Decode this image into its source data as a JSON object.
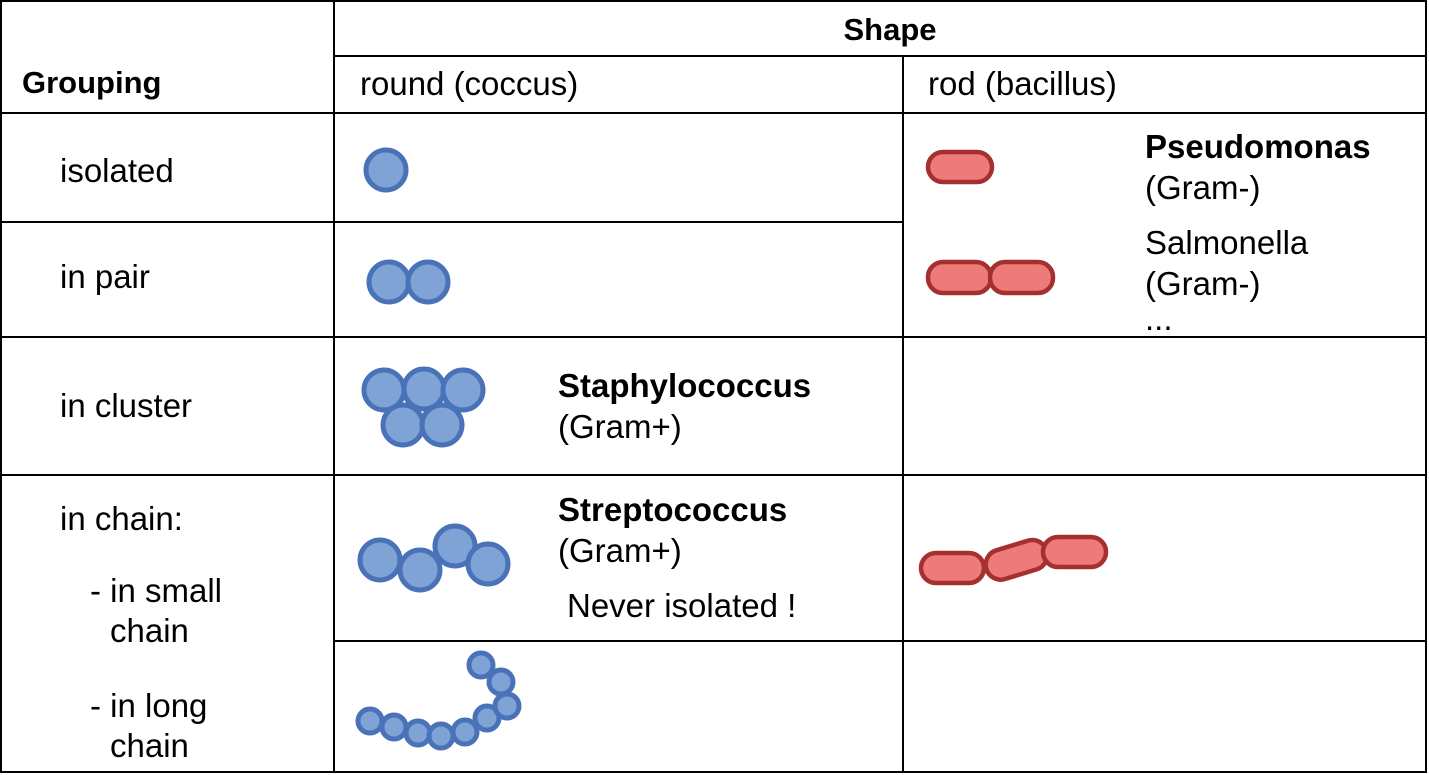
{
  "table": {
    "shape_header": "Shape",
    "grouping_header": "Grouping",
    "col_round": "round (coccus)",
    "col_rod": "rod (bacillus)"
  },
  "rows": {
    "isolated": "isolated",
    "pair": "in pair",
    "cluster": "in cluster",
    "chain": "in chain:",
    "small_chain_1": "- in small",
    "small_chain_2": "chain",
    "long_chain_1": "- in long",
    "long_chain_2": "chain"
  },
  "annotations": {
    "pseudomonas_name": "Pseudomonas",
    "pseudomonas_gram": "(Gram-)",
    "salmonella_name": "Salmonella",
    "salmonella_gram": "(Gram-)",
    "ellipsis": "...",
    "staph_name": "Staphylococcus",
    "staph_gram": "(Gram+)",
    "strep_name": "Streptococcus",
    "strep_gram": "(Gram+)",
    "never_isolated": "Never isolated !"
  },
  "colors": {
    "coccus_fill": "#7ea3d4",
    "coccus_stroke": "#4a72b8",
    "rod_fill": "#ef7a7a",
    "rod_stroke": "#a53030"
  }
}
